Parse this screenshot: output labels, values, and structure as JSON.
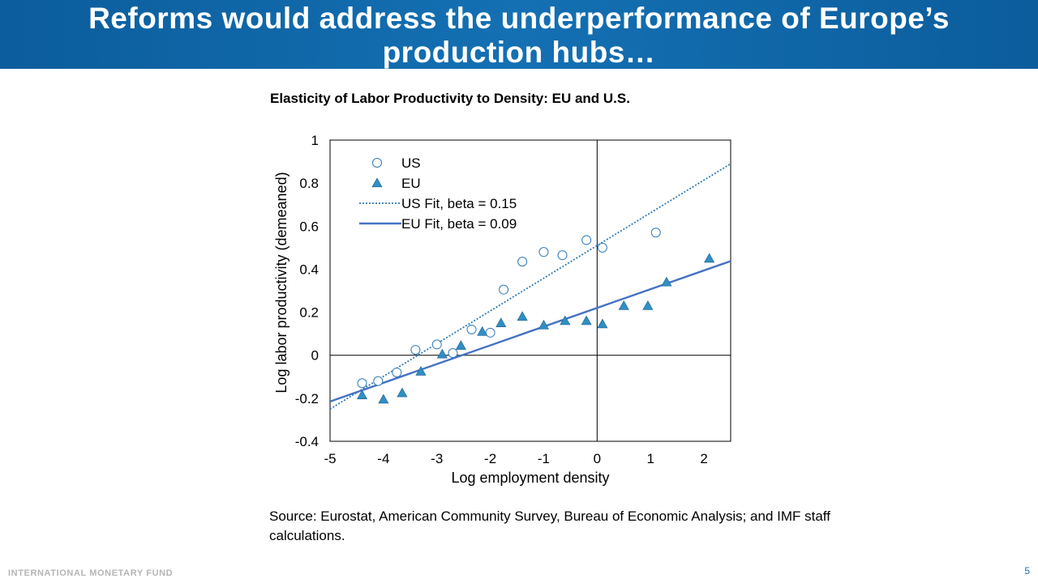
{
  "slide": {
    "title": "Reforms would address the underperformance of Europe’s production hubs…",
    "title_line1": "Reforms would address the underperformance of Europe’s",
    "title_line2": "production hubs…",
    "source": "Source: Eurostat, American Community Survey, Bureau of Economic Analysis; and IMF staff calculations.",
    "footer": "INTERNATIONAL MONETARY FUND",
    "page_number": "5"
  },
  "colors": {
    "header": "#1068ab",
    "series": "#2f7ab8",
    "eu_marker": "#2f8fc4",
    "eu_fit": "#4472c4"
  },
  "chart_data": {
    "type": "scatter",
    "title": "Elasticity of Labor Productivity to Density: EU and U.S.",
    "xlabel": "Log employment density",
    "ylabel": "Log labor productivity (demeaned)",
    "xlim": [
      -5,
      2.5
    ],
    "ylim": [
      -0.4,
      1
    ],
    "xticks": [
      -5,
      -4,
      -3,
      -2,
      -1,
      0,
      1,
      2
    ],
    "yticks": [
      -0.4,
      -0.2,
      0,
      0.2,
      0.4,
      0.6,
      0.8,
      1
    ],
    "ytick_labels": [
      "-0.4",
      "-0.2",
      "0",
      "0.2",
      "0.4",
      "0.6",
      "0.8",
      "1"
    ],
    "legend_position": "top-left",
    "grid": false,
    "series": [
      {
        "name": "US",
        "marker": "open-circle",
        "points": [
          [
            -4.4,
            -0.13
          ],
          [
            -4.1,
            -0.12
          ],
          [
            -3.75,
            -0.08
          ],
          [
            -3.4,
            0.025
          ],
          [
            -3.0,
            0.05
          ],
          [
            -2.7,
            0.01
          ],
          [
            -2.35,
            0.12
          ],
          [
            -2.0,
            0.105
          ],
          [
            -1.75,
            0.305
          ],
          [
            -1.4,
            0.435
          ],
          [
            -1.0,
            0.48
          ],
          [
            -0.65,
            0.465
          ],
          [
            -0.2,
            0.535
          ],
          [
            0.1,
            0.5
          ],
          [
            1.1,
            0.57
          ]
        ]
      },
      {
        "name": "EU",
        "marker": "filled-triangle",
        "points": [
          [
            -4.4,
            -0.185
          ],
          [
            -4.0,
            -0.205
          ],
          [
            -3.65,
            -0.175
          ],
          [
            -3.3,
            -0.075
          ],
          [
            -2.9,
            0.005
          ],
          [
            -2.55,
            0.045
          ],
          [
            -2.15,
            0.11
          ],
          [
            -1.8,
            0.15
          ],
          [
            -1.4,
            0.18
          ],
          [
            -1.0,
            0.14
          ],
          [
            -0.6,
            0.16
          ],
          [
            -0.2,
            0.16
          ],
          [
            0.1,
            0.145
          ],
          [
            0.5,
            0.23
          ],
          [
            0.95,
            0.23
          ],
          [
            1.3,
            0.34
          ],
          [
            2.1,
            0.45
          ]
        ]
      }
    ],
    "fits": [
      {
        "name": "US Fit, beta = 0.15",
        "style": "dotted",
        "slope": 0.152,
        "intercept": 0.51
      },
      {
        "name": "EU Fit, beta = 0.09",
        "style": "solid",
        "slope": 0.087,
        "intercept": 0.22
      }
    ]
  }
}
